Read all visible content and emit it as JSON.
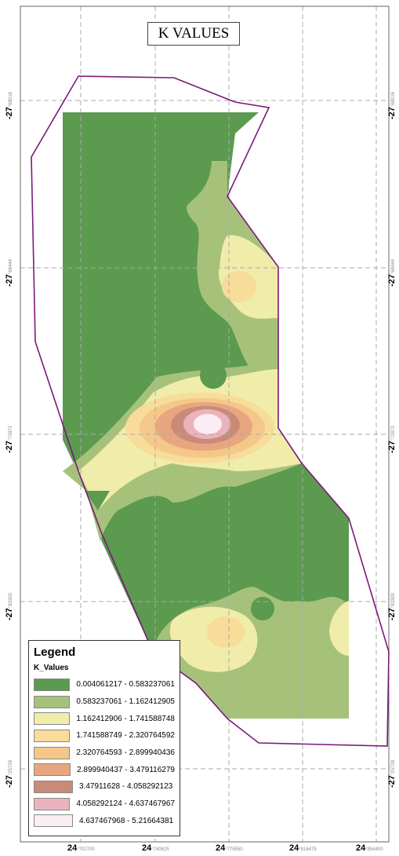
{
  "map": {
    "title": "K VALUES",
    "boundary_color": "#7a1a7a",
    "grid_color": "#aaaaaa",
    "left_ticks": [
      {
        "major": "-27",
        "minor": "°68016"
      },
      {
        "major": "-27",
        "minor": "°68444"
      },
      {
        "major": "-27",
        "minor": "°72872"
      },
      {
        "major": "-27",
        "minor": "°83300"
      },
      {
        "major": "-27",
        "minor": "°25728"
      }
    ],
    "right_ticks": [
      {
        "major": "-27",
        "minor": "°68016"
      },
      {
        "major": "-27",
        "minor": "°68444"
      },
      {
        "major": "-27",
        "minor": "°72872"
      },
      {
        "major": "-27",
        "minor": "°83300"
      },
      {
        "major": "-27",
        "minor": "°25728"
      }
    ],
    "bottom_ticks": [
      {
        "major": "24",
        "minor": "°702700"
      },
      {
        "major": "24",
        "minor": "°740625"
      },
      {
        "major": "24",
        "minor": "°778550"
      },
      {
        "major": "24",
        "minor": "°816475"
      },
      {
        "major": "24",
        "minor": "°854400"
      }
    ]
  },
  "legend": {
    "title": "Legend",
    "layer_name": "K_Values",
    "classes": [
      {
        "label": "0.004061217 - 0.583237061",
        "color": "#5b9a4f"
      },
      {
        "label": "0.583237061 - 1.162412905",
        "color": "#a6c27a"
      },
      {
        "label": "1.162412906 - 1.741588748",
        "color": "#f0ecaa"
      },
      {
        "label": "1.741588749 - 2.320764592",
        "color": "#f7dc9a"
      },
      {
        "label": "2.320764593 - 2.899940436",
        "color": "#f5c88a"
      },
      {
        "label": "2.899940437 - 3.479116279",
        "color": "#e7a67f"
      },
      {
        "label": "3.47911628 - 4.058292123",
        "color": "#c98a78"
      },
      {
        "label": "4.058292124 - 4.637467967",
        "color": "#ebb3be"
      },
      {
        "label": "4.637467968 - 5.21664381",
        "color": "#fbeef3"
      }
    ]
  }
}
